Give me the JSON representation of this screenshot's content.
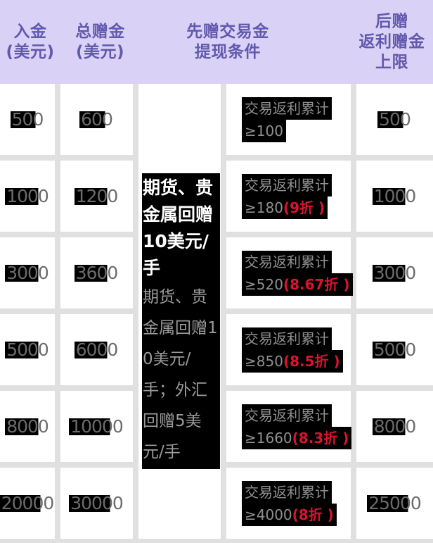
{
  "headers": {
    "deposit": {
      "lines": [
        "入金",
        "(美元)"
      ]
    },
    "total_bonus": {
      "lines": [
        "总赠金",
        "(美元)"
      ]
    },
    "withdraw_condition": {
      "lines": [
        "先赠交易金",
        "提现条件"
      ]
    },
    "rebate_cap": {
      "lines": [
        "后赠",
        "返利赠金",
        "上限"
      ]
    }
  },
  "note": {
    "bold_text": "期货、贵金属回赠10美元/手",
    "regular_text": "期货、贵金属回赠10美元/手；外汇回赠5美元/手"
  },
  "rows": [
    {
      "deposit": "500",
      "total_bonus": "600",
      "condition_label": "交易返利累计",
      "threshold": "≥100",
      "discount": "",
      "rebate_cap": "500"
    },
    {
      "deposit": "1000",
      "total_bonus": "1200",
      "condition_label": "交易返利累计",
      "threshold": "≥180",
      "discount": "(9折 )",
      "rebate_cap": "1000"
    },
    {
      "deposit": "3000",
      "total_bonus": "3600",
      "condition_label": "交易返利累计",
      "threshold": "≥520",
      "discount": "(8.67折 )",
      "rebate_cap": "3000"
    },
    {
      "deposit": "5000",
      "total_bonus": "6000",
      "condition_label": "交易返利累计",
      "threshold": "≥850",
      "discount": "(8.5折 )",
      "rebate_cap": "5000"
    },
    {
      "deposit": "8000",
      "total_bonus": "10000",
      "condition_label": "交易返利累计",
      "threshold": "≥1660",
      "discount": "(8.3折 )",
      "rebate_cap": "8000"
    },
    {
      "deposit": "20000",
      "total_bonus": "30000",
      "condition_label": "交易返利累计",
      "threshold": "≥4000",
      "discount": "(8折 )",
      "rebate_cap": "25000"
    }
  ],
  "colors": {
    "header_bg": "#dad1f6",
    "header_text": "#6159ad",
    "grid_border": "#e0e0e0",
    "number_text": "#6b6b6b",
    "text_highlight": "#000000",
    "condition_text": "#8f8f8f",
    "discount_red": "#d8142f",
    "note_bold_text": "#ffffff",
    "note_regular_text": "#9b9b9b"
  },
  "chart_data": {
    "type": "table",
    "columns": [
      "入金(美元)",
      "总赠金(美元)",
      "先赠交易金提现条件",
      "后赠返利赠金上限"
    ],
    "rows": [
      [
        "500",
        "600",
        "交易返利累计≥100",
        "500"
      ],
      [
        "1000",
        "1200",
        "交易返利累计≥180(9折)",
        "1000"
      ],
      [
        "3000",
        "3600",
        "交易返利累计≥520(8.67折)",
        "3000"
      ],
      [
        "5000",
        "6000",
        "交易返利累计≥850(8.5折)",
        "5000"
      ],
      [
        "8000",
        "10000",
        "交易返利累计≥1660(8.3折)",
        "8000"
      ],
      [
        "20000",
        "30000",
        "交易返利累计≥4000(8折)",
        "25000"
      ]
    ],
    "note": "期货、贵金属回赠10美元/手；外汇回赠5美元/手"
  }
}
